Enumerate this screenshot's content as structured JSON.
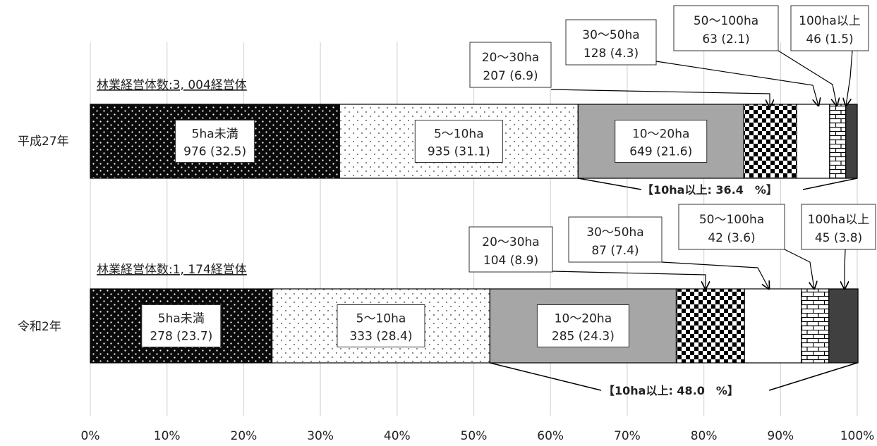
{
  "chart_data": {
    "type": "bar",
    "orientation": "horizontal",
    "stacked": "percent",
    "xlim": [
      0,
      100
    ],
    "x_ticks": [
      "0%",
      "10%",
      "20%",
      "30%",
      "40%",
      "50%",
      "60%",
      "70%",
      "80%",
      "90%",
      "100%"
    ],
    "grid": "vertical",
    "legend": "none",
    "colors": {
      "5ha未満": "#0a0a0a",
      "5〜10ha": "#ffffff",
      "10〜20ha": "#a6a6a6",
      "20〜30ha": "#000000",
      "30〜50ha": "#ffffff",
      "50〜100ha": "#ffffff",
      "100ha以上": "#404040"
    },
    "patterns": {
      "5ha未満": "black-dotted",
      "5〜10ha": "white-dotted",
      "10〜20ha": "solid-gray",
      "20〜30ha": "checkerboard",
      "30〜50ha": "solid-white",
      "50〜100ha": "brick",
      "100ha以上": "solid-dark"
    },
    "bars": [
      {
        "category": "平成27年",
        "total_label": "林業経営体数:3, 004経営体",
        "bracket_label": "【10ha以上: 36.4　%】",
        "segments": [
          {
            "name": "5ha未満",
            "count": "976",
            "pct": 32.5,
            "pct_text": "(32.5)",
            "label_line1": "5ha未満",
            "label_line2": "976 (32.5)"
          },
          {
            "name": "5〜10ha",
            "count": "935",
            "pct": 31.1,
            "pct_text": "(31.1)",
            "label_line1": "5〜10ha",
            "label_line2": "935 (31.1)"
          },
          {
            "name": "10〜20ha",
            "count": "649",
            "pct": 21.6,
            "pct_text": "(21.6)",
            "label_line1": "10〜20ha",
            "label_line2": "649 (21.6)"
          },
          {
            "name": "20〜30ha",
            "count": "207",
            "pct": 6.9,
            "pct_text": "(6.9)",
            "label_line1": "20〜30ha",
            "label_line2": "207 (6.9)"
          },
          {
            "name": "30〜50ha",
            "count": "128",
            "pct": 4.3,
            "pct_text": "(4.3)",
            "label_line1": "30〜50ha",
            "label_line2": "128 (4.3)"
          },
          {
            "name": "50〜100ha",
            "count": "63",
            "pct": 2.1,
            "pct_text": "(2.1)",
            "label_line1": "50〜100ha",
            "label_line2": "63 (2.1)"
          },
          {
            "name": "100ha以上",
            "count": "46",
            "pct": 1.5,
            "pct_text": "(1.5)",
            "label_line1": "100ha以上",
            "label_line2": "46 (1.5)"
          }
        ]
      },
      {
        "category": "令和2年",
        "total_label": "林業経営体数:1, 174経営体",
        "bracket_label": "【10ha以上: 48.0　%】",
        "segments": [
          {
            "name": "5ha未満",
            "count": "278",
            "pct": 23.7,
            "pct_text": "(23.7)",
            "label_line1": "5ha未満",
            "label_line2": "278 (23.7)"
          },
          {
            "name": "5〜10ha",
            "count": "333",
            "pct": 28.4,
            "pct_text": "(28.4)",
            "label_line1": "5〜10ha",
            "label_line2": "333 (28.4)"
          },
          {
            "name": "10〜20ha",
            "count": "285",
            "pct": 24.3,
            "pct_text": "(24.3)",
            "label_line1": "10〜20ha",
            "label_line2": "285 (24.3)"
          },
          {
            "name": "20〜30ha",
            "count": "104",
            "pct": 8.9,
            "pct_text": "(8.9)",
            "label_line1": "20〜30ha",
            "label_line2": "104 (8.9)"
          },
          {
            "name": "30〜50ha",
            "count": "87",
            "pct": 7.4,
            "pct_text": "(7.4)",
            "label_line1": "30〜50ha",
            "label_line2": "87 (7.4)"
          },
          {
            "name": "50〜100ha",
            "count": "42",
            "pct": 3.6,
            "pct_text": "(3.6)",
            "label_line1": "50〜100ha",
            "label_line2": "42 (3.6)"
          },
          {
            "name": "100ha以上",
            "count": "45",
            "pct": 3.8,
            "pct_text": "(3.8)",
            "label_line1": "100ha以上",
            "label_line2": "45 (3.8)"
          }
        ]
      }
    ]
  }
}
